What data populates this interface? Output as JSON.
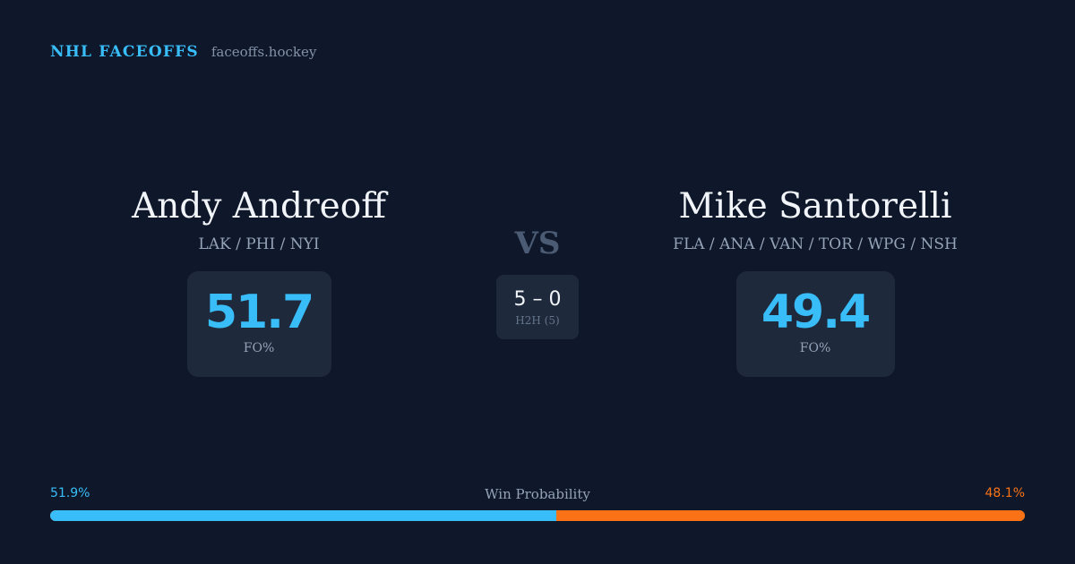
{
  "header": {
    "brand": "NHL FACEOFFS",
    "domain": "faceoffs.hockey"
  },
  "player1": {
    "name": "Andy Andreoff",
    "teams": "LAK / PHI / NYI",
    "stat_value": "51.7",
    "stat_label": "FO%"
  },
  "player2": {
    "name": "Mike Santorelli",
    "teams": "FLA / ANA / VAN / TOR / WPG / NSH",
    "stat_value": "49.4",
    "stat_label": "FO%"
  },
  "matchup": {
    "vs": "VS",
    "h2h_score": "5 – 0",
    "h2h_label": "H2H (5)"
  },
  "win_probability": {
    "title": "Win Probability",
    "left_label": "51.9%",
    "right_label": "48.1%",
    "left_fraction": 0.519,
    "right_fraction": 0.481
  },
  "colors": {
    "background": "#0f172a",
    "card": "#1e293b",
    "accent_blue": "#38bdf8",
    "accent_orange": "#f97316"
  }
}
